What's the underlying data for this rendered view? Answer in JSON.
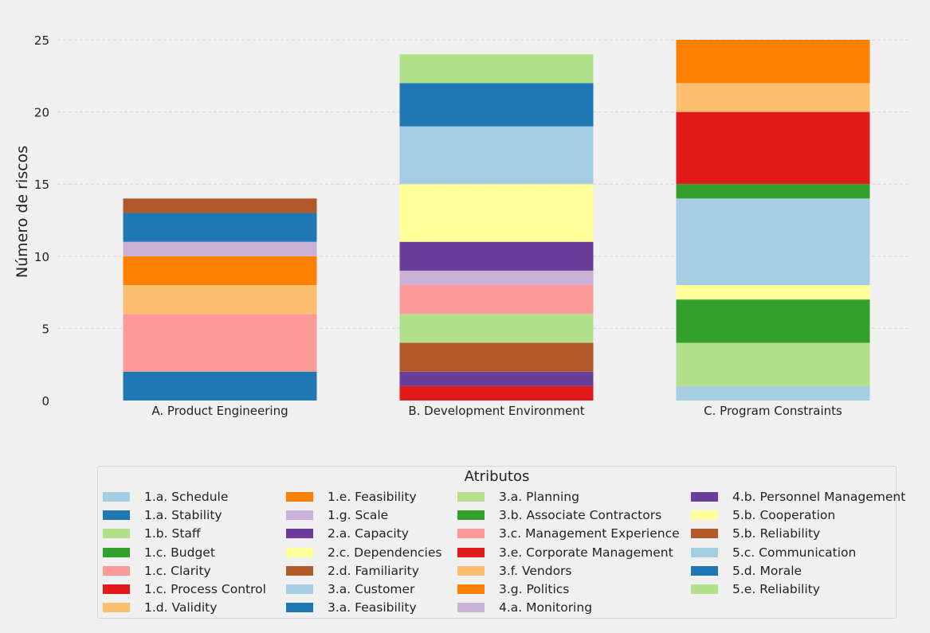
{
  "chart_data": {
    "type": "bar",
    "stacked": true,
    "ylabel": "Número de riscos",
    "xlabel": "",
    "ylim": [
      0,
      25
    ],
    "yticks": [
      0,
      5,
      10,
      15,
      20,
      25
    ],
    "grid": "y",
    "categories": [
      "A. Product Engineering",
      "B. Development Environment",
      "C. Program Constraints"
    ],
    "stacks": [
      [
        {
          "name": "1.a. Stability",
          "value": 2,
          "color": "#1f78b4"
        },
        {
          "name": "1.c. Clarity",
          "value": 4,
          "color": "#fb9a99"
        },
        {
          "name": "1.d. Validity",
          "value": 2,
          "color": "#fdbf6f"
        },
        {
          "name": "1.e. Feasibility",
          "value": 2,
          "color": "#ff7f00"
        },
        {
          "name": "1.g. Scale",
          "value": 1,
          "color": "#cab2d6"
        },
        {
          "name": "1.a. Stability",
          "value": 2,
          "color": "#1f78b4"
        },
        {
          "name": "2.d. Familiarity",
          "value": 1,
          "color": "#b15928"
        }
      ],
      [
        {
          "name": "3.e. Corporate Management",
          "value": 1,
          "color": "#e31a1c"
        },
        {
          "name": "2.a. Capacity",
          "value": 1,
          "color": "#6a3d9a"
        },
        {
          "name": "2.d. Familiarity",
          "value": 2,
          "color": "#b15928"
        },
        {
          "name": "3.a. Planning",
          "value": 2,
          "color": "#b2df8a"
        },
        {
          "name": "3.c. Management Experience",
          "value": 2,
          "color": "#fb9a99"
        },
        {
          "name": "4.a. Monitoring",
          "value": 1,
          "color": "#cab2d6"
        },
        {
          "name": "4.b. Personnel Management",
          "value": 2,
          "color": "#6a3d9a"
        },
        {
          "name": "5.b. Cooperation",
          "value": 4,
          "color": "#ffff99"
        },
        {
          "name": "5.c. Communication",
          "value": 4,
          "color": "#a6cee3"
        },
        {
          "name": "5.d. Morale",
          "value": 3,
          "color": "#1f78b4"
        },
        {
          "name": "5.e. Reliability",
          "value": 2,
          "color": "#b2df8a"
        }
      ],
      [
        {
          "name": "1.a. Schedule",
          "value": 1,
          "color": "#a6cee3"
        },
        {
          "name": "1.b. Staff",
          "value": 3,
          "color": "#b2df8a"
        },
        {
          "name": "1.c. Budget",
          "value": 3,
          "color": "#33a02c"
        },
        {
          "name": "2.c. Dependencies",
          "value": 1,
          "color": "#ffff99"
        },
        {
          "name": "3.a. Customer",
          "value": 6,
          "color": "#a6cee3"
        },
        {
          "name": "3.b. Associate Contractors",
          "value": 1,
          "color": "#33a02c"
        },
        {
          "name": "1.c. Process Control",
          "value": 5,
          "color": "#e31a1c"
        },
        {
          "name": "3.f. Vendors",
          "value": 2,
          "color": "#fdbf6f"
        },
        {
          "name": "3.g. Politics",
          "value": 3,
          "color": "#ff7f00"
        }
      ]
    ]
  },
  "legend": {
    "title": "Atributos",
    "items": [
      {
        "label": "1.a. Schedule",
        "color": "#a6cee3"
      },
      {
        "label": "1.a. Stability",
        "color": "#1f78b4"
      },
      {
        "label": "1.b. Staff",
        "color": "#b2df8a"
      },
      {
        "label": "1.c. Budget",
        "color": "#33a02c"
      },
      {
        "label": "1.c. Clarity",
        "color": "#fb9a99"
      },
      {
        "label": "1.c. Process Control",
        "color": "#e31a1c"
      },
      {
        "label": "1.d. Validity",
        "color": "#fdbf6f"
      },
      {
        "label": "1.e. Feasibility",
        "color": "#ff7f00"
      },
      {
        "label": "1.g. Scale",
        "color": "#cab2d6"
      },
      {
        "label": "2.a. Capacity",
        "color": "#6a3d9a"
      },
      {
        "label": "2.c. Dependencies",
        "color": "#ffff99"
      },
      {
        "label": "2.d. Familiarity",
        "color": "#b15928"
      },
      {
        "label": "3.a. Customer",
        "color": "#a6cee3"
      },
      {
        "label": "3.a. Feasibility",
        "color": "#1f78b4"
      },
      {
        "label": "3.a. Planning",
        "color": "#b2df8a"
      },
      {
        "label": "3.b. Associate Contractors",
        "color": "#33a02c"
      },
      {
        "label": "3.c. Management Experience",
        "color": "#fb9a99"
      },
      {
        "label": "3.e. Corporate Management",
        "color": "#e31a1c"
      },
      {
        "label": "3.f. Vendors",
        "color": "#fdbf6f"
      },
      {
        "label": "3.g. Politics",
        "color": "#ff7f00"
      },
      {
        "label": "4.a. Monitoring",
        "color": "#cab2d6"
      },
      {
        "label": "4.b. Personnel Management",
        "color": "#6a3d9a"
      },
      {
        "label": "5.b. Cooperation",
        "color": "#ffff99"
      },
      {
        "label": "5.b. Reliability",
        "color": "#b15928"
      },
      {
        "label": "5.c. Communication",
        "color": "#a6cee3"
      },
      {
        "label": "5.d. Morale",
        "color": "#1f78b4"
      },
      {
        "label": "5.e. Reliability",
        "color": "#b2df8a"
      }
    ]
  }
}
